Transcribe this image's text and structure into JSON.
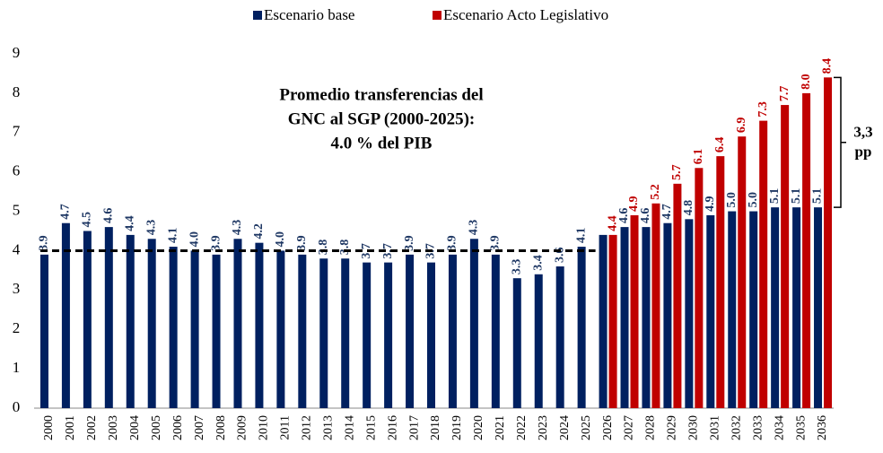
{
  "chart_data": {
    "type": "bar",
    "categories": [
      "2000",
      "2001",
      "2002",
      "2003",
      "2004",
      "2005",
      "2006",
      "2007",
      "2008",
      "2009",
      "2010",
      "2011",
      "2012",
      "2013",
      "2014",
      "2015",
      "2016",
      "2017",
      "2018",
      "2019",
      "2020",
      "2021",
      "2022",
      "2023",
      "2024",
      "2025",
      "2026",
      "2027",
      "2028",
      "2029",
      "2030",
      "2031",
      "2032",
      "2033",
      "2034",
      "2035",
      "2036"
    ],
    "series": [
      {
        "name": "Escenario base",
        "color": "#002060",
        "values": [
          3.9,
          4.7,
          4.5,
          4.6,
          4.4,
          4.3,
          4.1,
          4.0,
          3.9,
          4.3,
          4.2,
          4.0,
          3.9,
          3.8,
          3.8,
          3.7,
          3.7,
          3.9,
          3.7,
          3.9,
          4.3,
          3.9,
          3.3,
          3.4,
          3.6,
          4.1,
          4.4,
          4.6,
          4.6,
          4.7,
          4.8,
          4.9,
          5.0,
          5.0,
          5.1,
          5.1,
          5.1
        ],
        "value_labels": [
          "3.9",
          "4.7",
          "4.5",
          "4.6",
          "4.4",
          "4.3",
          "4.1",
          "4.0",
          "3.9",
          "4.3",
          "4.2",
          "4.0",
          "3.9",
          "3.8",
          "3.8",
          "3.7",
          "3.7",
          "3.9",
          "3.7",
          "3.9",
          "4.3",
          "3.9",
          "3.3",
          "3.4",
          "3.6",
          "4.1",
          null,
          "4.6",
          "4.6",
          "4.7",
          "4.8",
          "4.9",
          "5.0",
          "5.0",
          "5.1",
          "5.1",
          "5.1"
        ]
      },
      {
        "name": "Escenario Acto Legislativo",
        "color": "#c00000",
        "values": [
          null,
          null,
          null,
          null,
          null,
          null,
          null,
          null,
          null,
          null,
          null,
          null,
          null,
          null,
          null,
          null,
          null,
          null,
          null,
          null,
          null,
          null,
          null,
          null,
          null,
          null,
          4.4,
          4.9,
          5.2,
          5.7,
          6.1,
          6.4,
          6.9,
          7.3,
          7.7,
          8.0,
          8.4
        ],
        "value_labels": [
          null,
          null,
          null,
          null,
          null,
          null,
          null,
          null,
          null,
          null,
          null,
          null,
          null,
          null,
          null,
          null,
          null,
          null,
          null,
          null,
          null,
          null,
          null,
          null,
          null,
          null,
          "4.4",
          "4.9",
          "5.2",
          "5.7",
          "6.1",
          "6.4",
          "6.9",
          "7.3",
          "7.7",
          "8.0",
          "8.4"
        ]
      }
    ],
    "ylim": [
      0,
      9
    ],
    "yticks": [
      0,
      1,
      2,
      3,
      4,
      5,
      6,
      7,
      8,
      9
    ],
    "grid": false,
    "legend": "top",
    "reference_line": {
      "value": 4.0,
      "from": "2000",
      "to": "2025"
    },
    "annotation": [
      "Promedio transferencias del",
      "GNC al SGP (2000-2025):",
      "4.0 % del PIB"
    ],
    "gap_annotation": [
      "3,3",
      "pp"
    ]
  }
}
